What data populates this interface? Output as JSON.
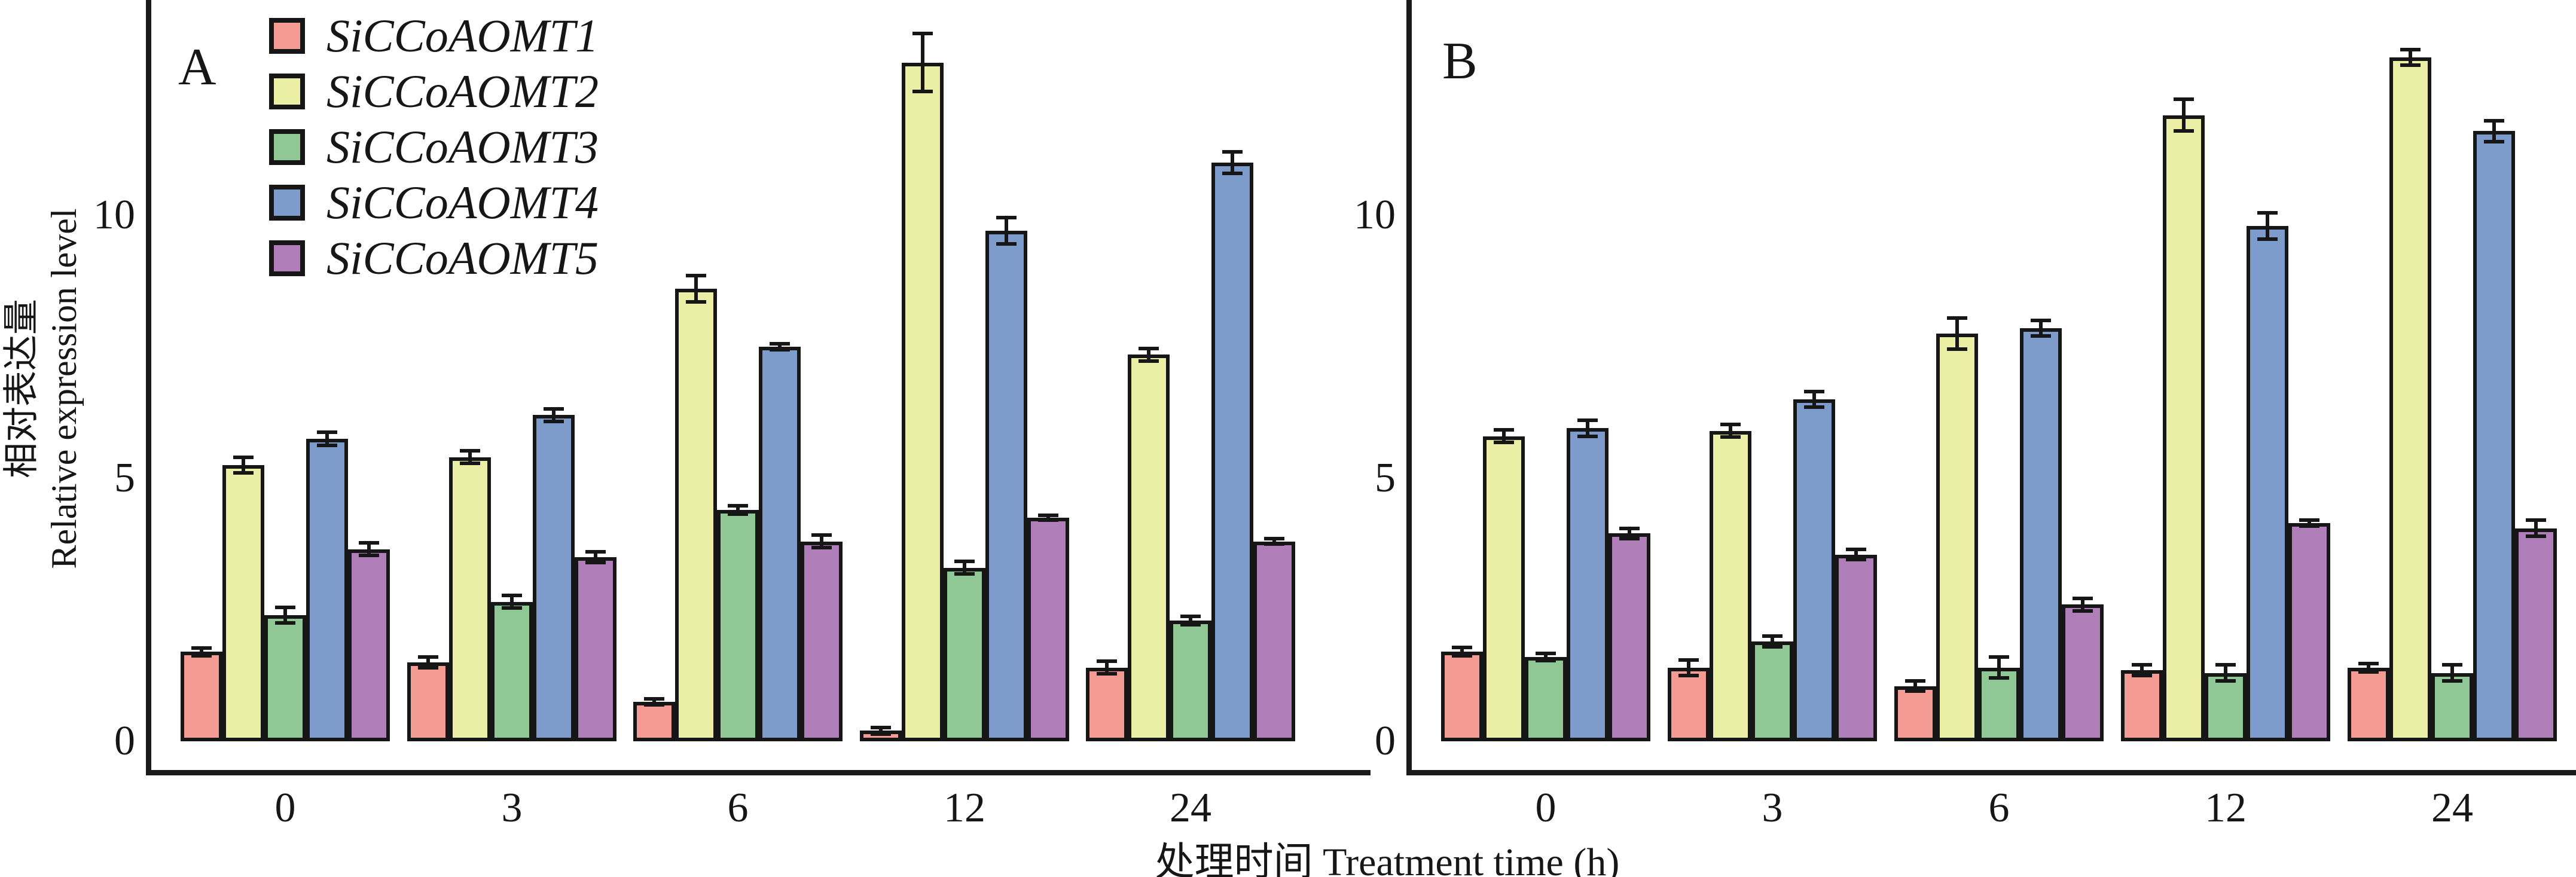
{
  "figure": {
    "y_axis_title_zh": "相对表达量",
    "y_axis_title_en": "Relative expression level",
    "x_axis_title": "处理时间 Treatment time (h)",
    "background_color": "#ffffff",
    "axis_color": "#161616"
  },
  "legend": {
    "items": [
      {
        "label": "SiCCoAOMT1",
        "color": "#F49B94"
      },
      {
        "label": "SiCCoAOMT2",
        "color": "#EBEEA5"
      },
      {
        "label": "SiCCoAOMT3",
        "color": "#8FC795"
      },
      {
        "label": "SiCCoAOMT4",
        "color": "#7D9CCB"
      },
      {
        "label": "SiCCoAOMT5",
        "color": "#AF7EB8"
      }
    ]
  },
  "chart_data": {
    "type": "bar",
    "title": "",
    "xlabel": "处理时间 Treatment time (h)",
    "ylabel": "相对表达量 Relative expression level",
    "categories": [
      "0",
      "3",
      "6",
      "12",
      "24"
    ],
    "yticks": [
      0,
      5,
      10
    ],
    "ylim": [
      0,
      14.1
    ],
    "grid": false,
    "error_bars": true,
    "legend_position": "upper-left inside panel A",
    "panels": [
      {
        "label": "A",
        "series": [
          {
            "name": "SiCCoAOMT1",
            "color": "#F49B94",
            "values": [
              1.7,
              1.5,
              0.75,
              0.2,
              1.4
            ],
            "errors": [
              0.07,
              0.1,
              0.06,
              0.06,
              0.12
            ]
          },
          {
            "name": "SiCCoAOMT2",
            "color": "#EBEEA5",
            "values": [
              5.25,
              5.4,
              8.6,
              12.9,
              7.35
            ],
            "errors": [
              0.15,
              0.12,
              0.25,
              0.55,
              0.12
            ]
          },
          {
            "name": "SiCCoAOMT3",
            "color": "#8FC795",
            "values": [
              2.4,
              2.65,
              4.4,
              3.3,
              2.3
            ],
            "errors": [
              0.15,
              0.12,
              0.08,
              0.12,
              0.08
            ]
          },
          {
            "name": "SiCCoAOMT4",
            "color": "#7D9CCB",
            "values": [
              5.75,
              6.2,
              7.5,
              9.7,
              11.0
            ],
            "errors": [
              0.12,
              0.12,
              0.06,
              0.25,
              0.2
            ]
          },
          {
            "name": "SiCCoAOMT5",
            "color": "#AF7EB8",
            "values": [
              3.65,
              3.5,
              3.8,
              4.25,
              3.8
            ],
            "errors": [
              0.12,
              0.1,
              0.12,
              0.05,
              0.05
            ]
          }
        ]
      },
      {
        "label": "B",
        "series": [
          {
            "name": "SiCCoAOMT1",
            "color": "#F49B94",
            "values": [
              1.7,
              1.4,
              1.05,
              1.35,
              1.4
            ],
            "errors": [
              0.08,
              0.15,
              0.1,
              0.1,
              0.08
            ]
          },
          {
            "name": "SiCCoAOMT2",
            "color": "#EBEEA5",
            "values": [
              5.8,
              5.9,
              7.75,
              11.9,
              13.0
            ],
            "errors": [
              0.12,
              0.12,
              0.3,
              0.3,
              0.15
            ]
          },
          {
            "name": "SiCCoAOMT3",
            "color": "#8FC795",
            "values": [
              1.6,
              1.9,
              1.4,
              1.3,
              1.3
            ],
            "errors": [
              0.07,
              0.1,
              0.2,
              0.15,
              0.15
            ]
          },
          {
            "name": "SiCCoAOMT4",
            "color": "#7D9CCB",
            "values": [
              5.95,
              6.5,
              7.85,
              9.8,
              11.6
            ],
            "errors": [
              0.15,
              0.15,
              0.15,
              0.25,
              0.2
            ]
          },
          {
            "name": "SiCCoAOMT5",
            "color": "#AF7EB8",
            "values": [
              3.95,
              3.55,
              2.6,
              4.15,
              4.05
            ],
            "errors": [
              0.1,
              0.1,
              0.12,
              0.06,
              0.15
            ]
          }
        ]
      }
    ]
  }
}
